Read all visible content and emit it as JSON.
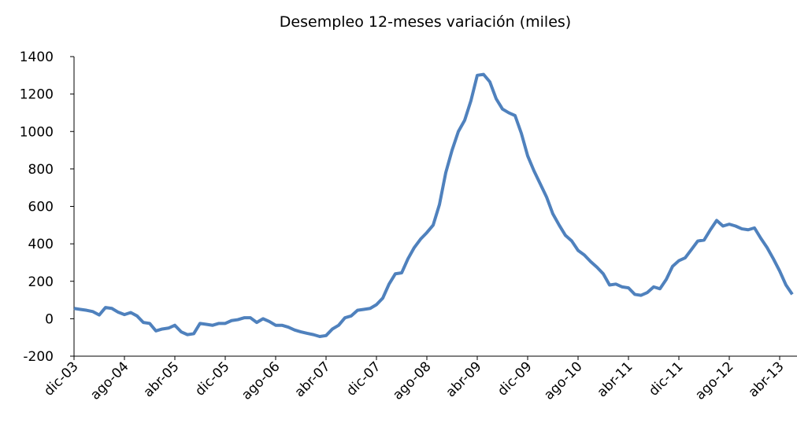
{
  "chart_data": {
    "type": "line",
    "title": "Desempleo  12-meses variación (miles)",
    "categories": [
      "dic-03",
      null,
      null,
      null,
      null,
      null,
      null,
      null,
      "ago-04",
      null,
      null,
      null,
      null,
      null,
      null,
      null,
      "abr-05",
      null,
      null,
      null,
      null,
      null,
      null,
      null,
      "dic-05",
      null,
      null,
      null,
      null,
      null,
      null,
      null,
      "ago-06",
      null,
      null,
      null,
      null,
      null,
      null,
      null,
      "abr-07",
      null,
      null,
      null,
      null,
      null,
      null,
      null,
      "dic-07",
      null,
      null,
      null,
      null,
      null,
      null,
      null,
      "ago-08",
      null,
      null,
      null,
      null,
      null,
      null,
      null,
      "abr-09",
      null,
      null,
      null,
      null,
      null,
      null,
      null,
      "dic-09",
      null,
      null,
      null,
      null,
      null,
      null,
      null,
      "ago-10",
      null,
      null,
      null,
      null,
      null,
      null,
      null,
      "abr-11",
      null,
      null,
      null,
      null,
      null,
      null,
      null,
      "dic-11",
      null,
      null,
      null,
      null,
      null,
      null,
      null,
      "ago-12",
      null,
      null,
      null,
      null,
      null,
      null,
      null,
      "abr-13",
      null,
      null
    ],
    "series": [
      {
        "name": "Desempleo",
        "color": "#4f81bd",
        "values": [
          55,
          50,
          45,
          38,
          20,
          60,
          55,
          35,
          22,
          33,
          15,
          -20,
          -25,
          -65,
          -55,
          -50,
          -35,
          -70,
          -85,
          -80,
          -25,
          -30,
          -35,
          -25,
          -25,
          -10,
          -5,
          5,
          5,
          -20,
          0,
          -15,
          -35,
          -35,
          -45,
          -60,
          -70,
          -78,
          -85,
          -95,
          -90,
          -55,
          -35,
          5,
          15,
          45,
          50,
          55,
          75,
          110,
          185,
          240,
          245,
          320,
          380,
          425,
          460,
          500,
          610,
          780,
          900,
          1000,
          1060,
          1165,
          1300,
          1305,
          1265,
          1175,
          1120,
          1100,
          1085,
          990,
          870,
          790,
          720,
          650,
          560,
          500,
          445,
          415,
          365,
          340,
          305,
          275,
          240,
          180,
          185,
          170,
          165,
          130,
          125,
          140,
          170,
          160,
          210,
          280,
          310,
          325,
          370,
          415,
          420,
          475,
          525,
          495,
          505,
          495,
          480,
          475,
          485,
          430,
          380,
          320,
          255,
          180,
          130
        ]
      }
    ],
    "ylim": [
      -200,
      1400
    ],
    "yticks": [
      -200,
      0,
      200,
      400,
      600,
      800,
      1000,
      1200,
      1400
    ]
  }
}
